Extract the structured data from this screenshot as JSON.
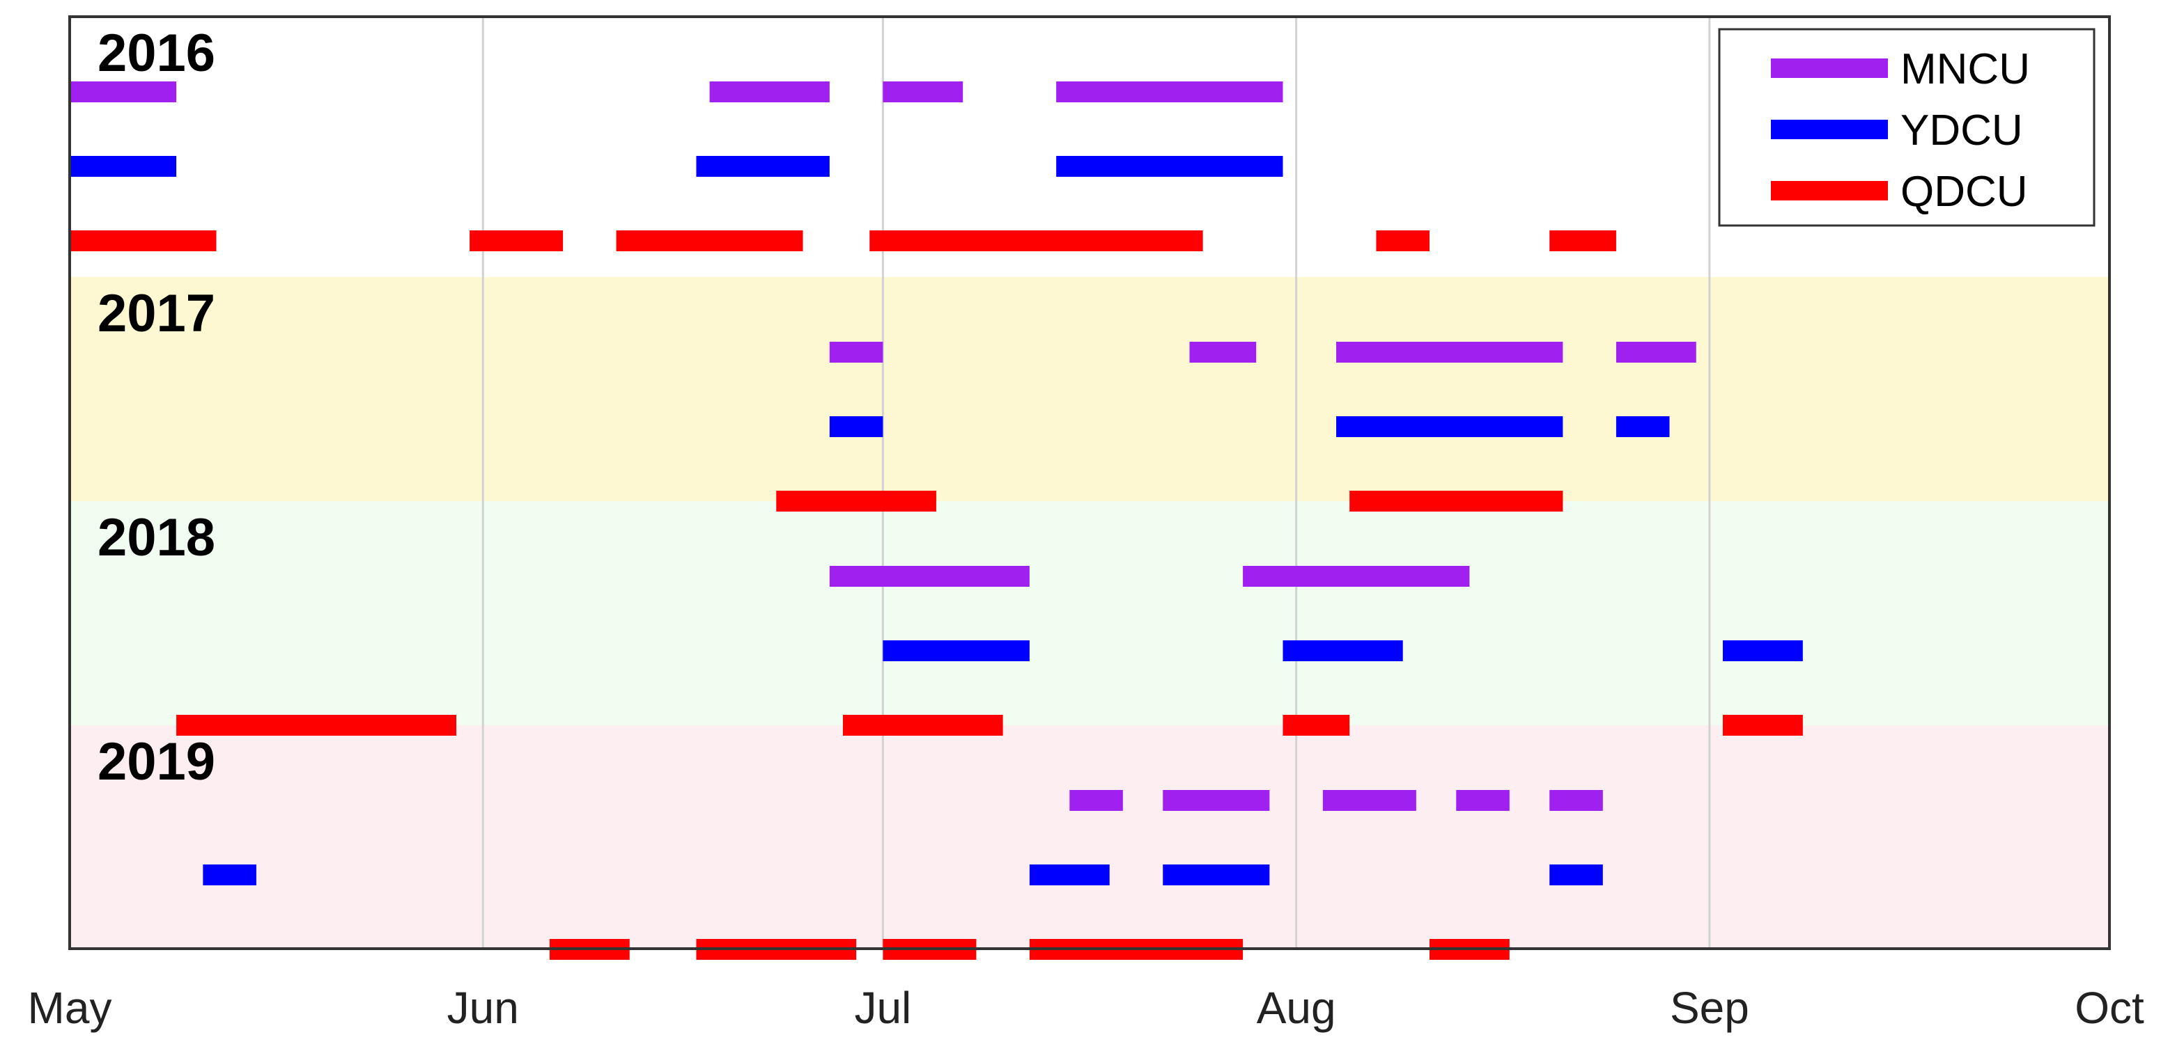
{
  "chart_data": {
    "type": "timeline",
    "x_axis": {
      "range": [
        "2000-05-01",
        "2000-10-01"
      ],
      "ticks": [
        {
          "date": "2000-05-01",
          "label": "May"
        },
        {
          "date": "2000-06-01",
          "label": "Jun"
        },
        {
          "date": "2000-07-01",
          "label": "Jul"
        },
        {
          "date": "2000-08-01",
          "label": "Aug"
        },
        {
          "date": "2000-09-01",
          "label": "Sep"
        },
        {
          "date": "2000-10-01",
          "label": "Oct"
        }
      ],
      "grid": true
    },
    "legend": {
      "position": "top-right",
      "entries": [
        {
          "name": "MNCU",
          "color": "#a020f0"
        },
        {
          "name": "YDCU",
          "color": "#0000ff"
        },
        {
          "name": "QDCU",
          "color": "#ff0000"
        }
      ]
    },
    "panels": [
      {
        "year": "2016",
        "background": "#ffffff",
        "series": [
          {
            "name": "MNCU",
            "color": "#a020f0",
            "intervals": [
              [
                "2000-05-01",
                "2000-05-09"
              ],
              [
                "2000-06-18",
                "2000-06-27"
              ],
              [
                "2000-07-01",
                "2000-07-07"
              ],
              [
                "2000-07-14",
                "2000-07-31"
              ]
            ]
          },
          {
            "name": "YDCU",
            "color": "#0000ff",
            "intervals": [
              [
                "2000-05-01",
                "2000-05-09"
              ],
              [
                "2000-06-17",
                "2000-06-27"
              ],
              [
                "2000-07-14",
                "2000-07-31"
              ]
            ]
          },
          {
            "name": "QDCU",
            "color": "#ff0000",
            "intervals": [
              [
                "2000-05-01",
                "2000-05-12"
              ],
              [
                "2000-05-31",
                "2000-06-07"
              ],
              [
                "2000-06-11",
                "2000-06-25"
              ],
              [
                "2000-06-30",
                "2000-07-25"
              ],
              [
                "2000-08-07",
                "2000-08-11"
              ],
              [
                "2000-08-20",
                "2000-08-25"
              ]
            ]
          }
        ]
      },
      {
        "year": "2017",
        "background": "#fdf8d2",
        "series": [
          {
            "name": "MNCU",
            "color": "#a020f0",
            "intervals": [
              [
                "2000-06-27",
                "2000-07-01"
              ],
              [
                "2000-07-24",
                "2000-07-29"
              ],
              [
                "2000-08-04",
                "2000-08-21"
              ],
              [
                "2000-08-25",
                "2000-08-31"
              ]
            ]
          },
          {
            "name": "YDCU",
            "color": "#0000ff",
            "intervals": [
              [
                "2000-06-27",
                "2000-07-01"
              ],
              [
                "2000-08-04",
                "2000-08-21"
              ],
              [
                "2000-08-25",
                "2000-08-29"
              ]
            ]
          },
          {
            "name": "QDCU",
            "color": "#ff0000",
            "intervals": [
              [
                "2000-06-23",
                "2000-07-05"
              ],
              [
                "2000-08-05",
                "2000-08-21"
              ]
            ]
          }
        ]
      },
      {
        "year": "2018",
        "background": "#f1fdf0",
        "series": [
          {
            "name": "MNCU",
            "color": "#a020f0",
            "intervals": [
              [
                "2000-06-27",
                "2000-07-12"
              ],
              [
                "2000-07-28",
                "2000-08-14"
              ]
            ]
          },
          {
            "name": "YDCU",
            "color": "#0000ff",
            "intervals": [
              [
                "2000-07-01",
                "2000-07-12"
              ],
              [
                "2000-07-31",
                "2000-08-09"
              ],
              [
                "2000-09-02",
                "2000-09-08"
              ]
            ]
          },
          {
            "name": "QDCU",
            "color": "#ff0000",
            "intervals": [
              [
                "2000-05-09",
                "2000-05-30"
              ],
              [
                "2000-06-28",
                "2000-07-10"
              ],
              [
                "2000-07-31",
                "2000-08-05"
              ],
              [
                "2000-09-02",
                "2000-09-08"
              ]
            ]
          }
        ]
      },
      {
        "year": "2019",
        "background": "#fdeef2",
        "series": [
          {
            "name": "MNCU",
            "color": "#a020f0",
            "intervals": [
              [
                "2000-07-15",
                "2000-07-19"
              ],
              [
                "2000-07-22",
                "2000-07-30"
              ],
              [
                "2000-08-03",
                "2000-08-10"
              ],
              [
                "2000-08-13",
                "2000-08-17"
              ],
              [
                "2000-08-20",
                "2000-08-24"
              ]
            ]
          },
          {
            "name": "YDCU",
            "color": "#0000ff",
            "intervals": [
              [
                "2000-05-11",
                "2000-05-15"
              ],
              [
                "2000-07-12",
                "2000-07-18"
              ],
              [
                "2000-07-22",
                "2000-07-30"
              ],
              [
                "2000-08-20",
                "2000-08-24"
              ]
            ]
          },
          {
            "name": "QDCU",
            "color": "#ff0000",
            "intervals": [
              [
                "2000-06-06",
                "2000-06-12"
              ],
              [
                "2000-06-17",
                "2000-06-29"
              ],
              [
                "2000-07-01",
                "2000-07-08"
              ],
              [
                "2000-07-12",
                "2000-07-28"
              ],
              [
                "2000-08-11",
                "2000-08-17"
              ]
            ]
          }
        ]
      }
    ]
  }
}
